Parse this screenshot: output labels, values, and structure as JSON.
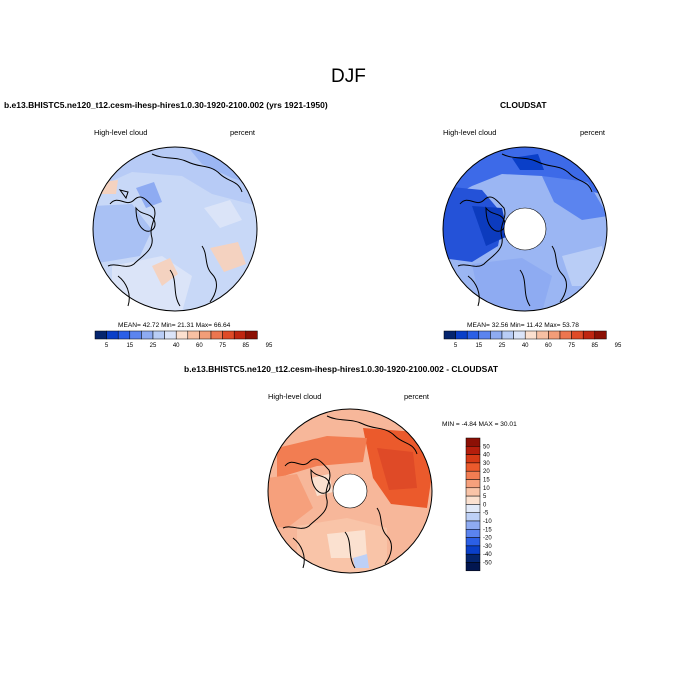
{
  "figure_title": "DJF",
  "colors": {
    "hbar": [
      "#05256e",
      "#0a3fc8",
      "#2b5fe6",
      "#5b84ef",
      "#8eabf2",
      "#b9cdf6",
      "#dbe4f8",
      "#fbe0cf",
      "#f7c0a3",
      "#f29d78",
      "#ec7550",
      "#df4a27",
      "#bf2510",
      "#8c1005"
    ],
    "vbar": [
      "#8c1005",
      "#b51e0c",
      "#d63a16",
      "#eb5a2c",
      "#f27d52",
      "#f6a07c",
      "#f9c4a8",
      "#fbe1d0",
      "#e1e9f8",
      "#bdd0f6",
      "#8eabf2",
      "#5b84ef",
      "#2b5fe6",
      "#0a3fc8",
      "#05256e",
      "#021650"
    ],
    "ocean": "#ffffff"
  },
  "panels": {
    "left": {
      "case_title": "b.e13.BHISTC5.ne120_t12.cesm-ihesp-hires1.0.30-1920-2100.002 (yrs 1921-1950)",
      "var_label": "High-level cloud",
      "units": "percent",
      "stats": "MEAN=  42.72  Min=  21.31  Max=  66.64",
      "base_color": "#c8d8f7",
      "colorbar_ticks": [
        "5",
        "15",
        "25",
        "40",
        "60",
        "75",
        "85",
        "95"
      ]
    },
    "right": {
      "case_title": "CLOUDSAT",
      "var_label": "High-level cloud",
      "units": "percent",
      "stats": "MEAN=  32.56  Min=  11.42  Max=  53.78",
      "base_color": "#9bb6f3",
      "colorbar_ticks": [
        "5",
        "15",
        "25",
        "40",
        "60",
        "75",
        "85",
        "95"
      ]
    },
    "diff": {
      "case_title": "b.e13.BHISTC5.ne120_t12.cesm-ihesp-hires1.0.30-1920-2100.002 - CLOUDSAT",
      "var_label": "High-level cloud",
      "units": "percent",
      "stats": "MIN =  -4.84 MAX =  30.01",
      "base_color": "#f7b79a",
      "colorbar_ticks": [
        "50",
        "40",
        "30",
        "20",
        "15",
        "10",
        "5",
        "0",
        "-5",
        "-10",
        "-15",
        "-20",
        "-30",
        "-40",
        "-50"
      ]
    }
  }
}
